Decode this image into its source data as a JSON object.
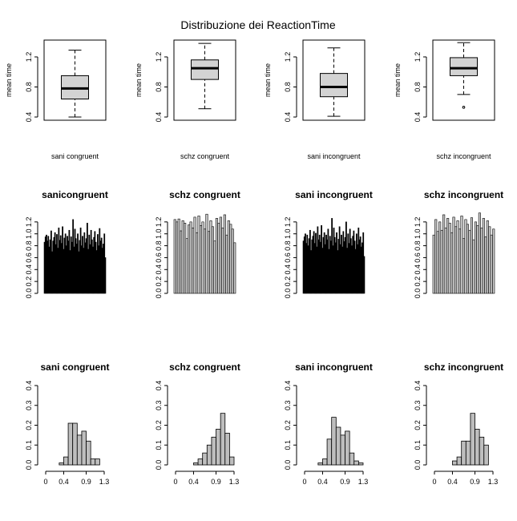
{
  "title": "Distribuzione dei ReactionTime",
  "chart_data": [
    {
      "type": "box",
      "panel": "box",
      "title": "",
      "xlabel": "sani congruent",
      "ylabel": "mean time",
      "yticks": [
        "0.4",
        "0.8",
        "1.2"
      ],
      "ylim": [
        0.4,
        1.4
      ],
      "stats": {
        "min": 0.4,
        "q1": 0.64,
        "median": 0.78,
        "q3": 0.95,
        "max": 1.29,
        "outliers": []
      }
    },
    {
      "type": "box",
      "panel": "box",
      "title": "",
      "xlabel": "schz congruent",
      "ylabel": "mean time",
      "yticks": [
        "0.4",
        "0.8",
        "1.2"
      ],
      "ylim": [
        0.4,
        1.4
      ],
      "stats": {
        "min": 0.51,
        "q1": 0.9,
        "median": 1.05,
        "q3": 1.16,
        "max": 1.38,
        "outliers": []
      }
    },
    {
      "type": "box",
      "panel": "box",
      "title": "",
      "xlabel": "sani incongruent",
      "ylabel": "mean time",
      "yticks": [
        "0.4",
        "0.8",
        "1.2"
      ],
      "ylim": [
        0.4,
        1.4
      ],
      "stats": {
        "min": 0.41,
        "q1": 0.67,
        "median": 0.8,
        "q3": 0.98,
        "max": 1.32,
        "outliers": []
      }
    },
    {
      "type": "box",
      "panel": "box",
      "title": "",
      "xlabel": "schz incongruent",
      "ylabel": "mean time",
      "yticks": [
        "0.4",
        "0.8",
        "1.2"
      ],
      "ylim": [
        0.4,
        1.4
      ],
      "stats": {
        "min": 0.7,
        "q1": 0.95,
        "median": 1.05,
        "q3": 1.19,
        "max": 1.39,
        "outliers": [
          0.53
        ]
      }
    },
    {
      "type": "bar",
      "panel": "bar",
      "title": "sanicongruent",
      "yticks": [
        "0.0",
        "0.2",
        "0.4",
        "0.6",
        "0.8",
        "1.0",
        "1.2"
      ],
      "ylim": [
        0,
        1.4
      ],
      "fill": "#000000",
      "values": [
        0.86,
        0.95,
        0.98,
        0.88,
        0.96,
        0.78,
        0.9,
        1.05,
        0.7,
        0.88,
        0.94,
        1.02,
        0.82,
        0.99,
        0.76,
        1.1,
        0.89,
        0.97,
        0.84,
        1.12,
        0.74,
        0.93,
        1.0,
        0.8,
        0.96,
        0.88,
        1.06,
        0.72,
        0.95,
        0.86,
        1.24,
        0.78,
        1.08,
        0.92,
        0.83,
        1.0,
        0.7,
        0.89,
        1.1,
        0.8,
        0.96,
        0.76,
        1.02,
        0.85,
        0.92,
        1.18,
        0.74,
        0.98,
        0.82,
        1.06,
        0.9,
        0.78,
        0.94,
        1.04,
        0.86,
        0.72,
        0.99,
        0.8,
        1.09,
        0.88,
        0.93,
        0.76,
        0.83,
        1.0,
        0.6
      ]
    },
    {
      "type": "bar",
      "panel": "bar",
      "title": "schz congruent",
      "yticks": [
        "0.0",
        "0.2",
        "0.4",
        "0.6",
        "0.8",
        "1.0",
        "1.2"
      ],
      "ylim": [
        0,
        1.4
      ],
      "fill": "#cccccc",
      "values": [
        1.24,
        1.2,
        1.25,
        1.05,
        1.22,
        1.18,
        0.92,
        1.15,
        1.2,
        1.1,
        1.28,
        1.02,
        1.3,
        1.14,
        1.2,
        1.08,
        1.33,
        1.04,
        1.22,
        1.12,
        0.88,
        1.26,
        1.18,
        1.28,
        1.1,
        1.32,
        0.98,
        1.22,
        1.16,
        1.08,
        0.85
      ]
    },
    {
      "type": "bar",
      "panel": "bar",
      "title": "sani incongruent",
      "yticks": [
        "0.0",
        "0.2",
        "0.4",
        "0.6",
        "0.8",
        "1.0",
        "1.2"
      ],
      "ylim": [
        0,
        1.4
      ],
      "fill": "#000000",
      "values": [
        0.88,
        0.95,
        1.0,
        0.84,
        0.98,
        0.8,
        0.92,
        1.06,
        0.72,
        0.9,
        0.96,
        1.04,
        0.84,
        1.01,
        0.78,
        1.12,
        0.9,
        0.98,
        0.86,
        1.14,
        0.76,
        0.94,
        1.02,
        0.82,
        0.98,
        0.9,
        1.08,
        0.74,
        0.96,
        0.88,
        1.26,
        0.8,
        1.1,
        0.94,
        0.85,
        1.02,
        0.72,
        0.91,
        1.12,
        0.82,
        0.98,
        0.78,
        1.04,
        0.87,
        0.94,
        1.2,
        0.76,
        1.0,
        0.84,
        1.08,
        0.92,
        0.8,
        0.96,
        1.05,
        0.88,
        0.74,
        1.0,
        0.82,
        1.1,
        0.9,
        0.95,
        0.78,
        0.85,
        1.02,
        0.62
      ]
    },
    {
      "type": "bar",
      "panel": "bar",
      "title": "schz incongruent",
      "yticks": [
        "0.0",
        "0.2",
        "0.4",
        "0.6",
        "0.8",
        "1.0",
        "1.2"
      ],
      "ylim": [
        0,
        1.4
      ],
      "fill": "#cccccc",
      "values": [
        0.98,
        1.24,
        1.04,
        1.2,
        1.06,
        1.32,
        1.1,
        1.26,
        1.18,
        1.02,
        1.28,
        1.12,
        1.22,
        1.08,
        1.3,
        0.92,
        1.24,
        1.16,
        1.06,
        1.27,
        0.9,
        1.2,
        1.14,
        1.35,
        1.1,
        1.26,
        0.95,
        1.22,
        1.12,
        0.98,
        1.08
      ]
    },
    {
      "type": "histogram",
      "panel": "hist",
      "title": "sani congruent",
      "bin_start": 0,
      "bin_width": 0.1,
      "yticks": [
        "0.0",
        "0.1",
        "0.2",
        "0.3",
        "0.4"
      ],
      "ylim": [
        0,
        0.4
      ],
      "xticks": [
        {
          "v": 0,
          "label": "0"
        },
        {
          "v": 0.4,
          "label": "0.4"
        },
        {
          "v": 0.9,
          "label": "0.9"
        },
        {
          "v": 1.3,
          "label": "1.3"
        }
      ],
      "values": [
        0,
        0,
        0,
        0.01,
        0.04,
        0.21,
        0.21,
        0.15,
        0.17,
        0.12,
        0.03,
        0.03,
        0,
        0
      ]
    },
    {
      "type": "histogram",
      "panel": "hist",
      "title": "schz congruent",
      "bin_start": 0,
      "bin_width": 0.1,
      "yticks": [
        "0.0",
        "0.1",
        "0.2",
        "0.3",
        "0.4"
      ],
      "ylim": [
        0,
        0.4
      ],
      "xticks": [
        {
          "v": 0,
          "label": "0"
        },
        {
          "v": 0.4,
          "label": "0.4"
        },
        {
          "v": 0.9,
          "label": "0.9"
        },
        {
          "v": 1.3,
          "label": "1.3"
        }
      ],
      "values": [
        0,
        0,
        0,
        0,
        0.01,
        0.03,
        0.06,
        0.1,
        0.14,
        0.18,
        0.26,
        0.16,
        0.04,
        0
      ]
    },
    {
      "type": "histogram",
      "panel": "hist",
      "title": "sani incongruent",
      "bin_start": 0,
      "bin_width": 0.1,
      "yticks": [
        "0.0",
        "0.1",
        "0.2",
        "0.3",
        "0.4"
      ],
      "ylim": [
        0,
        0.4
      ],
      "xticks": [
        {
          "v": 0,
          "label": "0"
        },
        {
          "v": 0.4,
          "label": "0.4"
        },
        {
          "v": 0.9,
          "label": "0.9"
        },
        {
          "v": 1.3,
          "label": "1.3"
        }
      ],
      "values": [
        0,
        0,
        0,
        0.01,
        0.03,
        0.13,
        0.24,
        0.19,
        0.15,
        0.17,
        0.06,
        0.02,
        0.01,
        0
      ]
    },
    {
      "type": "histogram",
      "panel": "hist",
      "title": "schz incongruent",
      "bin_start": 0,
      "bin_width": 0.1,
      "yticks": [
        "0.0",
        "0.1",
        "0.2",
        "0.3",
        "0.4"
      ],
      "ylim": [
        0,
        0.4
      ],
      "xticks": [
        {
          "v": 0,
          "label": "0"
        },
        {
          "v": 0.4,
          "label": "0.4"
        },
        {
          "v": 0.9,
          "label": "0.9"
        },
        {
          "v": 1.3,
          "label": "1.3"
        }
      ],
      "values": [
        0,
        0,
        0,
        0,
        0.02,
        0.04,
        0.12,
        0.12,
        0.26,
        0.18,
        0.14,
        0.1,
        0,
        0
      ]
    }
  ]
}
